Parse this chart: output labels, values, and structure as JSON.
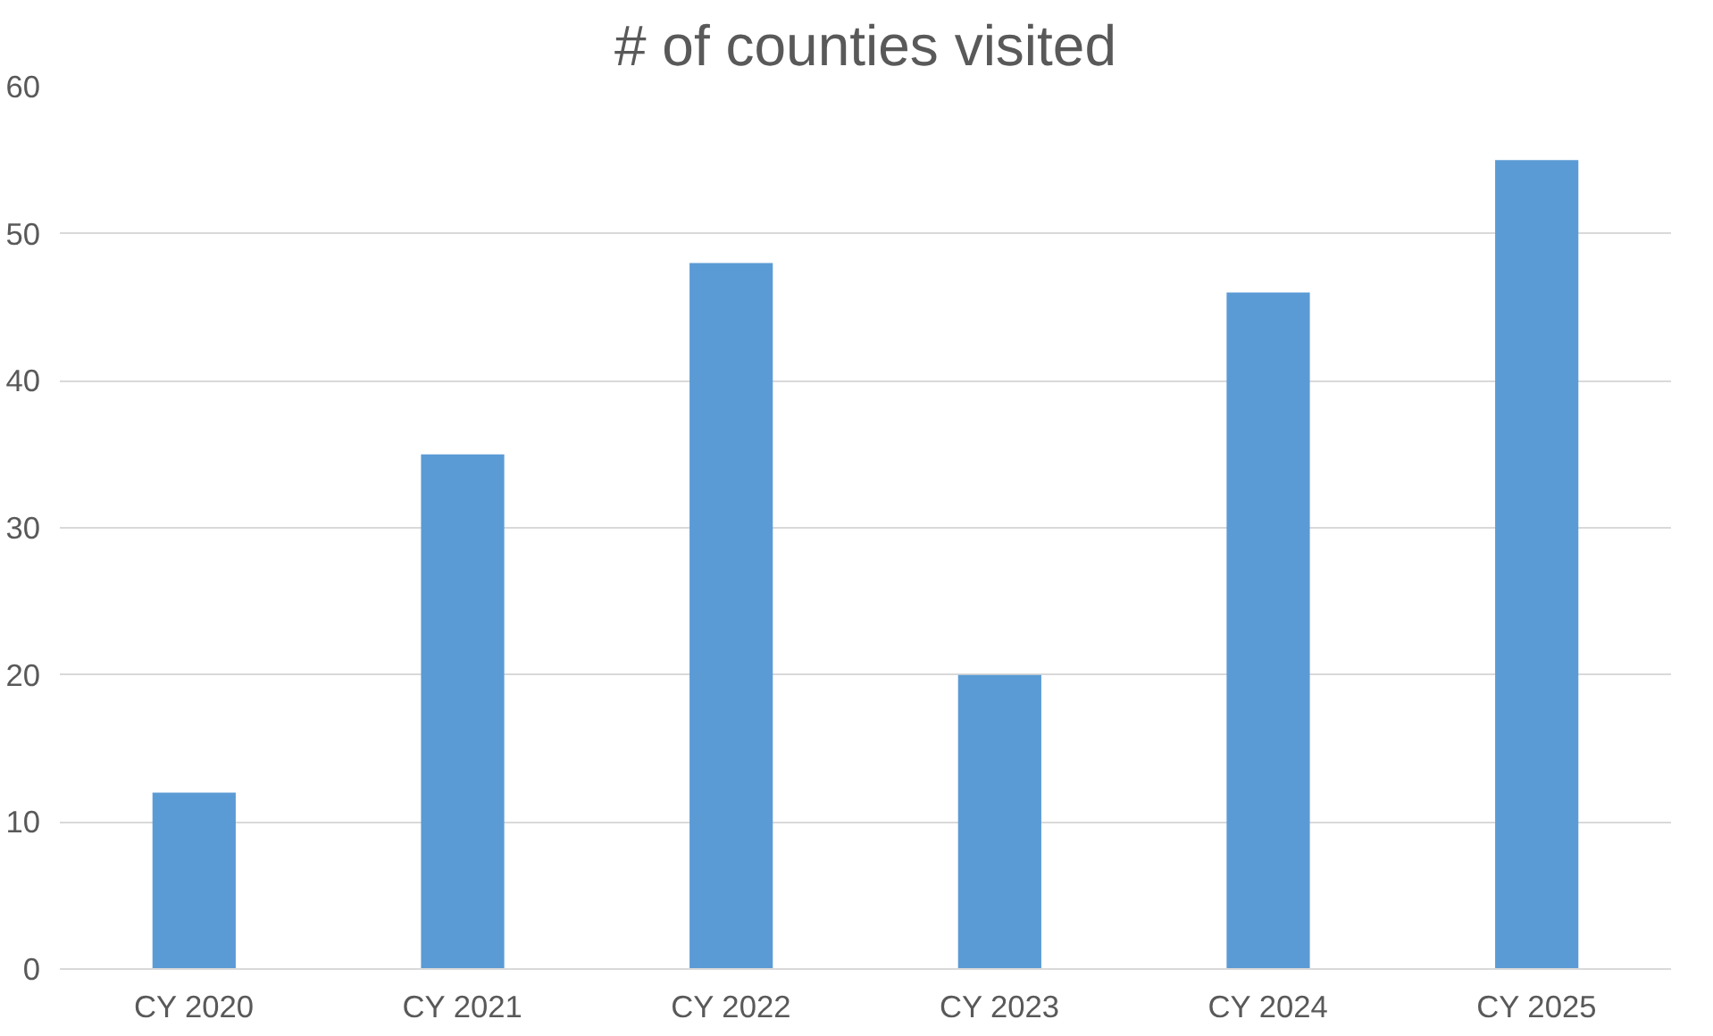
{
  "chart_data": {
    "type": "bar",
    "title": "# of counties visited",
    "categories": [
      "CY 2020",
      "CY 2021",
      "CY 2022",
      "CY 2023",
      "CY 2024",
      "CY 2025"
    ],
    "values": [
      12,
      35,
      48,
      20,
      46,
      55
    ],
    "color": "#5b9bd5",
    "ylim": [
      0,
      60
    ],
    "yticks": [
      0,
      10,
      20,
      30,
      40,
      50,
      60
    ],
    "grid": "y"
  }
}
